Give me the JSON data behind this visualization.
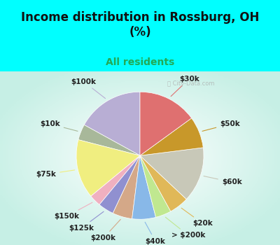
{
  "title": "Income distribution in Rossburg, OH\n(%)",
  "subtitle": "All residents",
  "bg_cyan": "#00FFFF",
  "labels": [
    "$100k",
    "$10k",
    "$75k",
    "$150k",
    "$125k",
    "$200k",
    "$40k",
    "> $200k",
    "$20k",
    "$60k",
    "$50k",
    "$30k"
  ],
  "values": [
    17,
    4,
    15,
    3,
    4,
    5,
    6,
    4,
    5,
    14,
    8,
    15
  ],
  "colors": [
    "#b8aed4",
    "#a8b89a",
    "#f0ee80",
    "#f0b0c0",
    "#9090d0",
    "#d4a888",
    "#88b8e8",
    "#c0e890",
    "#e0b858",
    "#c8c8b8",
    "#c8982a",
    "#df7070"
  ],
  "startangle": 90,
  "label_fontsize": 7.5,
  "title_fontsize": 12,
  "subtitle_fontsize": 10,
  "subtitle_color": "#22aa55"
}
